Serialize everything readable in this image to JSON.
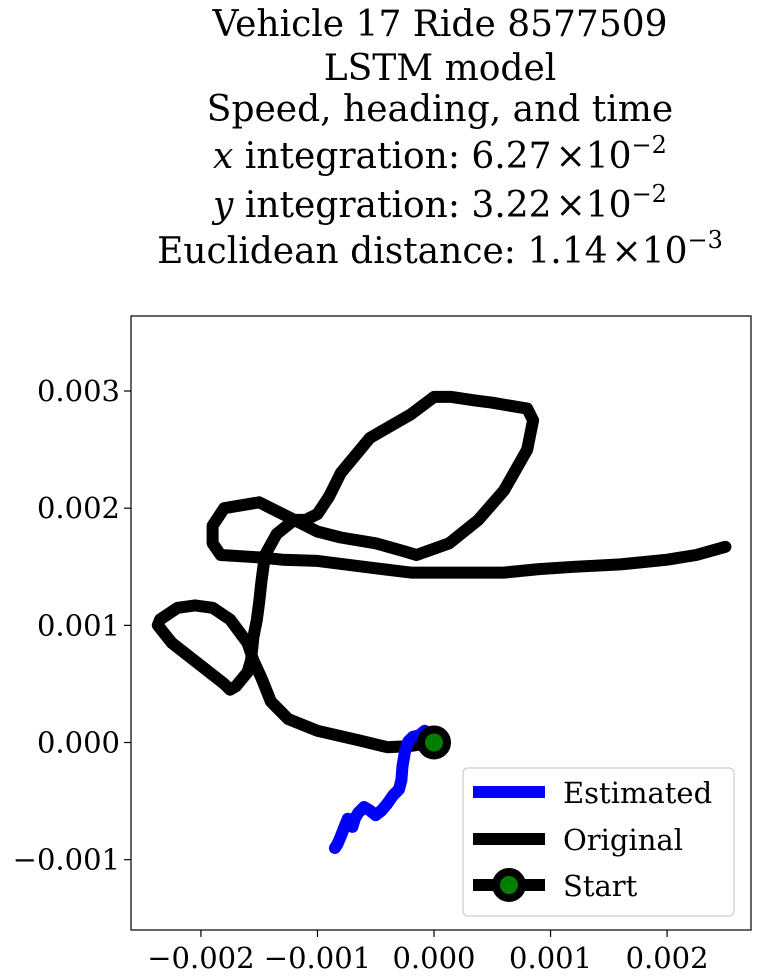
{
  "chart_data": {
    "type": "line",
    "title_lines": [
      "Vehicle 17 Ride 8577509",
      "LSTM model",
      "Speed, heading, and time"
    ],
    "metrics": [
      {
        "var": "x",
        "label": " integration: ",
        "mantissa": "6.27",
        "times": "×10",
        "exponent": "−2"
      },
      {
        "var": "y",
        "label": " integration: ",
        "mantissa": "3.22",
        "times": "×10",
        "exponent": "−2"
      },
      {
        "var": "",
        "label": "Euclidean distance: ",
        "mantissa": "1.14",
        "times": "×10",
        "exponent": "−3"
      }
    ],
    "xlim": [
      -0.0026,
      0.00272
    ],
    "ylim": [
      -0.0016,
      0.00364
    ],
    "xticks": [
      -0.002,
      -0.001,
      0.0,
      0.001,
      0.002
    ],
    "xtick_labels": [
      "−0.002",
      "−0.001",
      "0.000",
      "0.001",
      "0.002"
    ],
    "yticks": [
      -0.001,
      0.0,
      0.001,
      0.002,
      0.003
    ],
    "ytick_labels": [
      "−0.001",
      "0.000",
      "0.001",
      "0.002",
      "0.003"
    ],
    "legend_position": "lower right",
    "series": [
      {
        "name": "Original",
        "color": "#000000",
        "x": [
          0.0,
          -0.0002,
          -0.0004,
          -0.00065,
          -0.001,
          -0.00125,
          -0.0014,
          -0.00142,
          -0.00148,
          -0.00155,
          -0.0016,
          -0.00175,
          -0.0019,
          -0.00205,
          -0.0022,
          -0.00235,
          -0.00237,
          -0.00225,
          -0.0018,
          -0.00175,
          -0.0017,
          -0.0016,
          -0.00157,
          -0.00155,
          -0.00152,
          -0.0015,
          -0.00148,
          -0.00145,
          -0.00135,
          -0.0012,
          -0.0011,
          -0.001,
          -0.0009,
          -0.0008,
          -0.00055,
          -0.0002,
          0.0,
          0.00015,
          0.00035,
          0.0005,
          0.0008,
          0.00085,
          0.0008,
          0.0006,
          0.00038,
          0.00013,
          -0.00015,
          -0.00025,
          -0.0005,
          -0.0008,
          -0.001,
          -0.0012,
          -0.0015,
          -0.0018,
          -0.0019,
          -0.0019,
          -0.00183,
          -0.0015,
          -0.0013,
          -0.001,
          -0.0006,
          -0.0002,
          0.0002,
          0.0006,
          0.0009,
          0.0012,
          0.0016,
          0.002,
          0.00225,
          0.0025
        ],
        "y": [
          0.0,
          -3e-05,
          -4e-05,
          2e-05,
          0.0001,
          0.0002,
          0.00035,
          0.0004,
          0.00055,
          0.0007,
          0.00085,
          0.00105,
          0.00115,
          0.00117,
          0.00115,
          0.00105,
          0.001,
          0.00085,
          0.0005,
          0.00045,
          0.00048,
          0.0006,
          0.0007,
          0.0009,
          0.00105,
          0.0012,
          0.00138,
          0.0016,
          0.00178,
          0.0019,
          0.0019,
          0.00195,
          0.0021,
          0.0023,
          0.0026,
          0.0028,
          0.00295,
          0.00295,
          0.00292,
          0.0029,
          0.00285,
          0.00275,
          0.0025,
          0.00215,
          0.0019,
          0.0017,
          0.0016,
          0.00163,
          0.0017,
          0.00175,
          0.0018,
          0.0019,
          0.00205,
          0.002,
          0.00185,
          0.0017,
          0.0016,
          0.00158,
          0.00156,
          0.00155,
          0.0015,
          0.00145,
          0.00145,
          0.00145,
          0.00148,
          0.0015,
          0.00152,
          0.00156,
          0.0016,
          0.00167
        ]
      },
      {
        "name": "Estimated",
        "color": "#0000ff",
        "x": [
          0.0,
          -5e-05,
          -8e-05,
          -0.00013,
          -0.00018,
          -0.00022,
          -0.00025,
          -0.00027,
          -0.00028,
          -0.0003,
          -0.00035,
          -0.0004,
          -0.00045,
          -0.0005,
          -0.00055,
          -0.0006,
          -0.00065,
          -0.00068,
          -0.0007,
          -0.00072,
          -0.00074,
          -0.00076,
          -0.0008,
          -0.00083,
          -0.00085
        ],
        "y": [
          0.0,
          3e-05,
          0.0001,
          6e-05,
          5e-05,
          1e-05,
          -8e-05,
          -0.0002,
          -0.00032,
          -0.0004,
          -0.00045,
          -0.00052,
          -0.00058,
          -0.00062,
          -0.00058,
          -0.00055,
          -0.0006,
          -0.00065,
          -0.00072,
          -0.00068,
          -0.00065,
          -0.0007,
          -0.0008,
          -0.00087,
          -0.0009
        ]
      }
    ],
    "start_point": {
      "name": "Start",
      "x": 0.0,
      "y": 0.0,
      "marker_fill": "#008000",
      "marker_edge": "#000000"
    }
  }
}
